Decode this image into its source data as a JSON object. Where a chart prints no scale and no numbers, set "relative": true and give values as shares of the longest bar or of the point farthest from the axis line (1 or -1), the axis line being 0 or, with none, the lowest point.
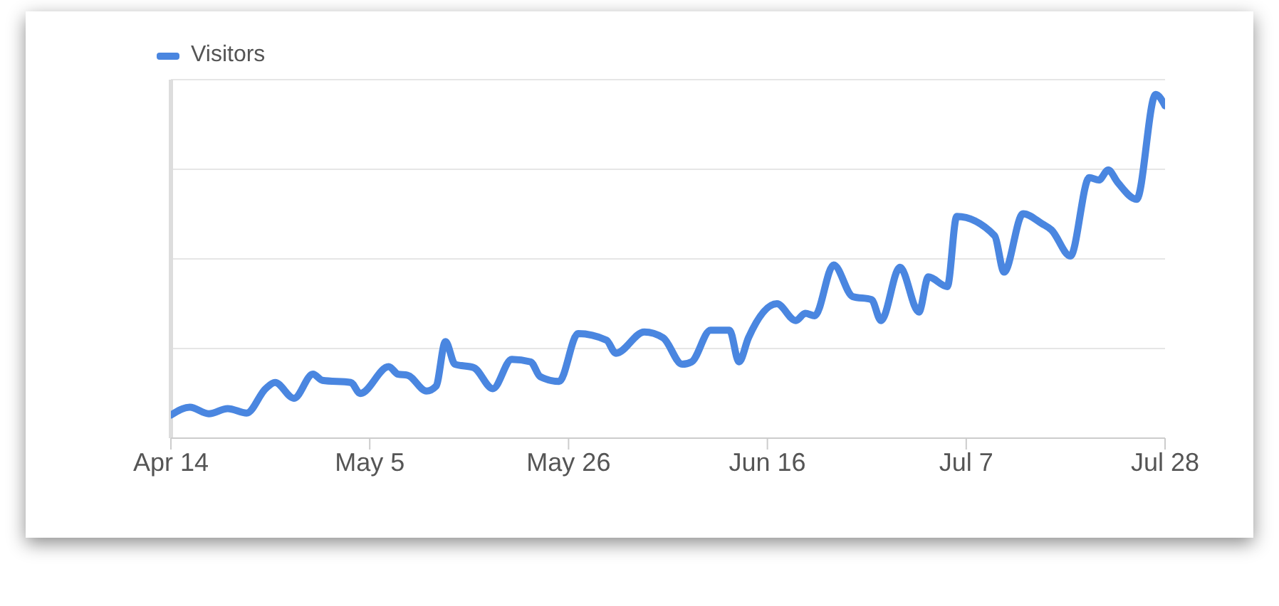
{
  "chart_data": {
    "type": "line",
    "relative": true,
    "x": [
      "--04-14",
      "--04-16",
      "--04-18",
      "--04-20",
      "--04-22",
      "--04-24",
      "--04-25",
      "--04-27",
      "--04-29",
      "--04-30",
      "--05-03",
      "--05-04",
      "--05-07",
      "--05-08",
      "--05-09",
      "--05-11",
      "--05-12",
      "--05-13",
      "--05-14",
      "--05-16",
      "--05-18",
      "--05-20",
      "--05-22",
      "--05-23",
      "--05-25",
      "--05-27",
      "--05-30",
      "--05-31",
      "--06-03",
      "--06-05",
      "--06-07",
      "--06-08",
      "--06-10",
      "--06-12",
      "--06-13",
      "--06-14",
      "--06-17",
      "--06-19",
      "--06-20",
      "--06-21",
      "--06-23",
      "--06-25",
      "--06-27",
      "--06-28",
      "--06-30",
      "--07-02",
      "--07-03",
      "--07-05",
      "--07-06",
      "--07-10",
      "--07-11",
      "--07-13",
      "--07-15",
      "--07-16",
      "--07-18",
      "--07-20",
      "--07-21",
      "--07-22",
      "--07-23",
      "--07-25",
      "--07-27",
      "--07-28"
    ],
    "series": [
      {
        "name": "Visitors",
        "color": "#4a86e0",
        "values": [
          0.067,
          0.09,
          0.071,
          0.086,
          0.073,
          0.144,
          0.162,
          0.116,
          0.186,
          0.168,
          0.162,
          0.13,
          0.208,
          0.186,
          0.183,
          0.137,
          0.151,
          0.281,
          0.215,
          0.205,
          0.144,
          0.229,
          0.222,
          0.179,
          0.165,
          0.304,
          0.285,
          0.247,
          0.309,
          0.292,
          0.215,
          0.222,
          0.314,
          0.314,
          0.222,
          0.292,
          0.391,
          0.342,
          0.363,
          0.356,
          0.504,
          0.412,
          0.403,
          0.342,
          0.497,
          0.367,
          0.469,
          0.441,
          0.645,
          0.589,
          0.483,
          0.653,
          0.624,
          0.606,
          0.53,
          0.758,
          0.751,
          0.78,
          0.744,
          0.695,
          1,
          0.967
        ]
      }
    ],
    "xlim": [
      "--04-14",
      "--07-28"
    ],
    "xticks": [
      {
        "value": "--04-14",
        "label": "Apr 14"
      },
      {
        "value": "--05-05",
        "label": "May 5"
      },
      {
        "value": "--05-26",
        "label": "May 26"
      },
      {
        "value": "--06-16",
        "label": "Jun 16"
      },
      {
        "value": "--07-07",
        "label": "Jul 7"
      },
      {
        "value": "--07-28",
        "label": "Jul 28"
      }
    ],
    "grid": "y",
    "legend": "top left",
    "marker": "none",
    "line_style": "solid"
  }
}
